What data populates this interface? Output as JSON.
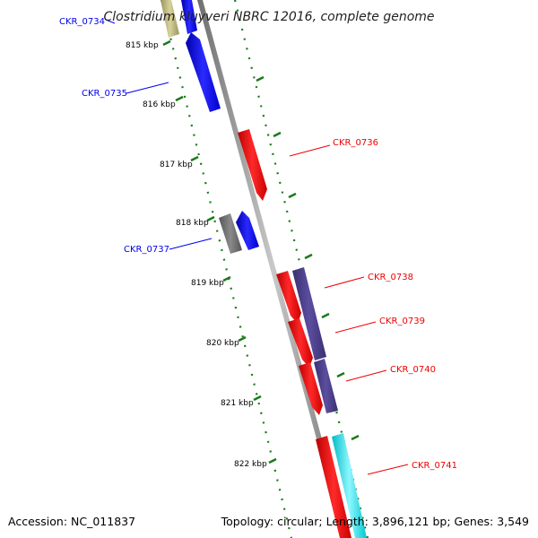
{
  "header": {
    "title": "Clostridium kluyveri NBRC 12016, complete genome"
  },
  "footer": {
    "accession": "Accession: NC_011837",
    "topology": "Topology: circular; Length: 3,896,121 bp; Genes: 3,549"
  },
  "ticks": [
    "815 kbp",
    "816 kbp",
    "817 kbp",
    "818 kbp",
    "819 kbp",
    "820 kbp",
    "821 kbp",
    "822 kbp"
  ],
  "genes": [
    {
      "label": "CKR_0734",
      "strand": "reverse",
      "color": "#0000ee"
    },
    {
      "label": "CKR_0735",
      "strand": "reverse",
      "color": "#0000ee"
    },
    {
      "label": "CKR_0736",
      "strand": "forward",
      "color": "#ee0000"
    },
    {
      "label": "CKR_0737",
      "strand": "reverse",
      "color": "#0000ee"
    },
    {
      "label": "CKR_0738",
      "strand": "forward",
      "color": "#ee0000"
    },
    {
      "label": "CKR_0739",
      "strand": "forward",
      "color": "#ee0000"
    },
    {
      "label": "CKR_0740",
      "strand": "forward",
      "color": "#ee0000"
    },
    {
      "label": "CKR_0741",
      "strand": "forward",
      "color": "#ee0000"
    }
  ],
  "colors": {
    "backbone": "#8a8a8a",
    "reverse_gene": "#0000ee",
    "forward_gene": "#ee0000",
    "olive_feature": "#b8b27a",
    "grey_feature": "#6e6e6e",
    "purple_feature": "#4a3d8c",
    "cyan_feature": "#00e5ee",
    "gc_dots": "#1a7a1a"
  }
}
